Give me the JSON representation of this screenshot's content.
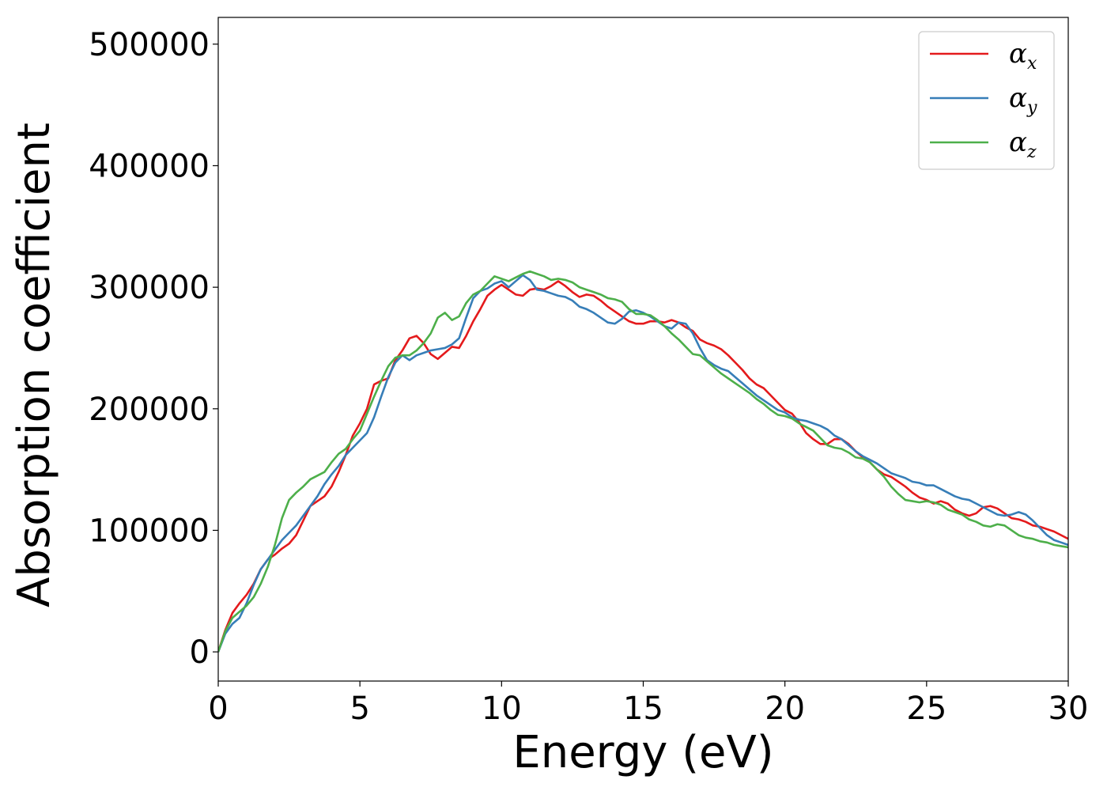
{
  "chart_data": {
    "type": "line",
    "title": "",
    "xlabel": "Energy (eV)",
    "ylabel": "Absorption coefficient",
    "xlim": [
      0,
      30
    ],
    "ylim": [
      -24000,
      522000
    ],
    "xticks": [
      0,
      5,
      10,
      15,
      20,
      25,
      30
    ],
    "yticks": [
      0,
      100000,
      200000,
      300000,
      400000,
      500000
    ],
    "grid": false,
    "legend_position": "top-right",
    "series": [
      {
        "name": "α",
        "subscript": "x",
        "color": "#e41a1c",
        "x": [
          0,
          0.25,
          0.5,
          0.75,
          1.0,
          1.25,
          1.5,
          1.75,
          2.0,
          2.25,
          2.5,
          2.75,
          3.0,
          3.25,
          3.5,
          3.75,
          4.0,
          4.25,
          4.5,
          4.75,
          5.0,
          5.25,
          5.5,
          5.75,
          6.0,
          6.25,
          6.5,
          6.75,
          7.0,
          7.25,
          7.5,
          7.75,
          8.0,
          8.25,
          8.5,
          8.75,
          9.0,
          9.25,
          9.5,
          9.75,
          10.0,
          10.25,
          10.5,
          10.75,
          11.0,
          11.25,
          11.5,
          11.75,
          12.0,
          12.25,
          12.5,
          12.75,
          13.0,
          13.25,
          13.5,
          13.75,
          14.0,
          14.25,
          14.5,
          14.75,
          15.0,
          15.25,
          15.5,
          15.75,
          16.0,
          16.25,
          16.5,
          16.75,
          17.0,
          17.25,
          17.5,
          17.75,
          18.0,
          18.25,
          18.5,
          18.75,
          19.0,
          19.25,
          19.5,
          19.75,
          20.0,
          20.25,
          20.5,
          20.75,
          21.0,
          21.25,
          21.5,
          21.75,
          22.0,
          22.25,
          22.5,
          22.75,
          23.0,
          23.25,
          23.5,
          23.75,
          24.0,
          24.25,
          24.5,
          24.75,
          25.0,
          25.25,
          25.5,
          25.75,
          26.0,
          26.25,
          26.5,
          26.75,
          27.0,
          27.25,
          27.5,
          27.75,
          28.0,
          28.25,
          28.5,
          28.75,
          29.0,
          29.25,
          29.5,
          29.75,
          30.0
        ],
        "y": [
          0,
          18000,
          32000,
          40000,
          47000,
          56000,
          68000,
          76000,
          80000,
          85000,
          89000,
          96000,
          108000,
          120000,
          124000,
          128000,
          136000,
          148000,
          162000,
          178000,
          188000,
          200000,
          220000,
          223000,
          225000,
          240000,
          248000,
          258000,
          260000,
          254000,
          245000,
          241000,
          246000,
          251000,
          250000,
          260000,
          272000,
          282000,
          293000,
          298000,
          302000,
          298000,
          294000,
          293000,
          298000,
          299000,
          298000,
          301000,
          305000,
          301000,
          296000,
          292000,
          294000,
          293000,
          289000,
          284000,
          280000,
          276000,
          272000,
          270000,
          270000,
          272000,
          272000,
          271000,
          273000,
          271000,
          267000,
          264000,
          257000,
          254000,
          252000,
          249000,
          244000,
          238000,
          232000,
          225000,
          220000,
          217000,
          211000,
          205000,
          199000,
          196000,
          189000,
          180000,
          175000,
          171000,
          171000,
          175000,
          175000,
          171000,
          165000,
          160000,
          156000,
          150000,
          146000,
          144000,
          140000,
          136000,
          131000,
          127000,
          125000,
          122000,
          124000,
          122000,
          117000,
          114000,
          112000,
          114000,
          119000,
          120000,
          118000,
          114000,
          110000,
          109000,
          107000,
          104000,
          103000,
          101000,
          99000,
          96000,
          93000
        ]
      },
      {
        "name": "α",
        "subscript": "y",
        "color": "#377eb8",
        "x": [
          0,
          0.25,
          0.5,
          0.75,
          1.0,
          1.25,
          1.5,
          1.75,
          2.0,
          2.25,
          2.5,
          2.75,
          3.0,
          3.25,
          3.5,
          3.75,
          4.0,
          4.25,
          4.5,
          4.75,
          5.0,
          5.25,
          5.5,
          5.75,
          6.0,
          6.25,
          6.5,
          6.75,
          7.0,
          7.25,
          7.5,
          7.75,
          8.0,
          8.25,
          8.5,
          8.75,
          9.0,
          9.25,
          9.5,
          9.75,
          10.0,
          10.25,
          10.5,
          10.75,
          11.0,
          11.25,
          11.5,
          11.75,
          12.0,
          12.25,
          12.5,
          12.75,
          13.0,
          13.25,
          13.5,
          13.75,
          14.0,
          14.25,
          14.5,
          14.75,
          15.0,
          15.25,
          15.5,
          15.75,
          16.0,
          16.25,
          16.5,
          16.75,
          17.0,
          17.25,
          17.5,
          17.75,
          18.0,
          18.25,
          18.5,
          18.75,
          19.0,
          19.25,
          19.5,
          19.75,
          20.0,
          20.25,
          20.5,
          20.75,
          21.0,
          21.25,
          21.5,
          21.75,
          22.0,
          22.25,
          22.5,
          22.75,
          23.0,
          23.25,
          23.5,
          23.75,
          24.0,
          24.25,
          24.5,
          24.75,
          25.0,
          25.25,
          25.5,
          25.75,
          26.0,
          26.25,
          26.5,
          26.75,
          27.0,
          27.25,
          27.5,
          27.75,
          28.0,
          28.25,
          28.5,
          28.75,
          29.0,
          29.25,
          29.5,
          29.75,
          30.0
        ],
        "y": [
          0,
          15000,
          23000,
          28000,
          40000,
          55000,
          68000,
          76000,
          84000,
          92000,
          98000,
          104000,
          112000,
          120000,
          128000,
          138000,
          146000,
          153000,
          162000,
          168000,
          174000,
          180000,
          193000,
          210000,
          226000,
          238000,
          244000,
          240000,
          244000,
          246000,
          248000,
          249000,
          250000,
          253000,
          258000,
          275000,
          291000,
          297000,
          299000,
          303000,
          305000,
          300000,
          305000,
          310000,
          306000,
          298000,
          297000,
          295000,
          293000,
          292000,
          289000,
          284000,
          282000,
          279000,
          275000,
          271000,
          270000,
          274000,
          280000,
          281000,
          279000,
          276000,
          272000,
          268000,
          266000,
          271000,
          270000,
          262000,
          250000,
          240000,
          236000,
          233000,
          231000,
          226000,
          221000,
          216000,
          211000,
          207000,
          203000,
          199000,
          197000,
          193000,
          191000,
          190000,
          188000,
          186000,
          183000,
          178000,
          175000,
          170000,
          165000,
          161000,
          158000,
          155000,
          151000,
          147000,
          145000,
          143000,
          140000,
          139000,
          137000,
          137000,
          134000,
          131000,
          128000,
          126000,
          125000,
          122000,
          119000,
          116000,
          113000,
          112000,
          113000,
          115000,
          113000,
          108000,
          102000,
          96000,
          92000,
          90000,
          88000
        ]
      },
      {
        "name": "α",
        "subscript": "z",
        "color": "#4daf4a",
        "x": [
          0,
          0.25,
          0.5,
          0.75,
          1.0,
          1.25,
          1.5,
          1.75,
          2.0,
          2.25,
          2.5,
          2.75,
          3.0,
          3.25,
          3.5,
          3.75,
          4.0,
          4.25,
          4.5,
          4.75,
          5.0,
          5.25,
          5.5,
          5.75,
          6.0,
          6.25,
          6.5,
          6.75,
          7.0,
          7.25,
          7.5,
          7.75,
          8.0,
          8.25,
          8.5,
          8.75,
          9.0,
          9.25,
          9.5,
          9.75,
          10.0,
          10.25,
          10.5,
          10.75,
          11.0,
          11.25,
          11.5,
          11.75,
          12.0,
          12.25,
          12.5,
          12.75,
          13.0,
          13.25,
          13.5,
          13.75,
          14.0,
          14.25,
          14.5,
          14.75,
          15.0,
          15.25,
          15.5,
          15.75,
          16.0,
          16.25,
          16.5,
          16.75,
          17.0,
          17.25,
          17.5,
          17.75,
          18.0,
          18.25,
          18.5,
          18.75,
          19.0,
          19.25,
          19.5,
          19.75,
          20.0,
          20.25,
          20.5,
          20.75,
          21.0,
          21.25,
          21.5,
          21.75,
          22.0,
          22.25,
          22.5,
          22.75,
          23.0,
          23.25,
          23.5,
          23.75,
          24.0,
          24.25,
          24.5,
          24.75,
          25.0,
          25.25,
          25.5,
          25.75,
          26.0,
          26.25,
          26.5,
          26.75,
          27.0,
          27.25,
          27.5,
          27.75,
          28.0,
          28.25,
          28.5,
          28.75,
          29.0,
          29.25,
          29.5,
          29.75,
          30.0
        ],
        "y": [
          0,
          17000,
          28000,
          33000,
          38000,
          45000,
          56000,
          70000,
          88000,
          110000,
          125000,
          131000,
          136000,
          142000,
          145000,
          148000,
          156000,
          163000,
          167000,
          175000,
          182000,
          196000,
          210000,
          223000,
          235000,
          242000,
          244000,
          244000,
          248000,
          254000,
          262000,
          275000,
          279000,
          273000,
          276000,
          287000,
          294000,
          297000,
          303000,
          309000,
          307000,
          305000,
          308000,
          311000,
          313000,
          311000,
          309000,
          306000,
          307000,
          306000,
          304000,
          300000,
          298000,
          296000,
          294000,
          291000,
          290000,
          288000,
          282000,
          278000,
          278000,
          277000,
          273000,
          268000,
          262000,
          257000,
          251000,
          245000,
          244000,
          239000,
          234000,
          229000,
          225000,
          221000,
          217000,
          213000,
          208000,
          204000,
          199000,
          195000,
          194000,
          192000,
          188000,
          185000,
          182000,
          176000,
          170000,
          168000,
          167000,
          164000,
          160000,
          159000,
          156000,
          150000,
          144000,
          136000,
          130000,
          125000,
          124000,
          123000,
          124000,
          123000,
          121000,
          117000,
          115000,
          113000,
          109000,
          107000,
          104000,
          103000,
          105000,
          104000,
          100000,
          96000,
          94000,
          93000,
          91000,
          90000,
          88000,
          87000,
          86000
        ]
      }
    ]
  }
}
